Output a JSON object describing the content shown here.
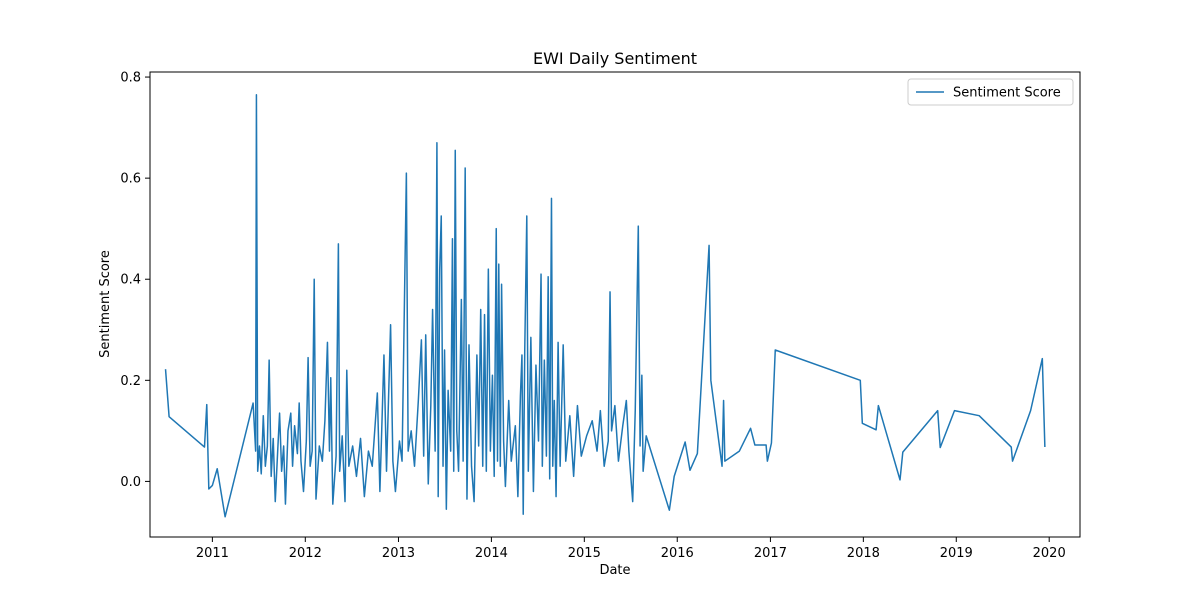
{
  "chart_data": {
    "type": "line",
    "title": "EWI Daily Sentiment",
    "xlabel": "Date",
    "ylabel": "Sentiment Score",
    "x_range": [
      "2010-05-01",
      "2020-05-01"
    ],
    "ylim": [
      -0.11,
      0.81
    ],
    "x_ticks": [
      {
        "date": "2011-01-01",
        "label": "2011"
      },
      {
        "date": "2012-01-01",
        "label": "2012"
      },
      {
        "date": "2013-01-01",
        "label": "2013"
      },
      {
        "date": "2014-01-01",
        "label": "2014"
      },
      {
        "date": "2015-01-01",
        "label": "2015"
      },
      {
        "date": "2016-01-01",
        "label": "2016"
      },
      {
        "date": "2017-01-01",
        "label": "2017"
      },
      {
        "date": "2018-01-01",
        "label": "2018"
      },
      {
        "date": "2019-01-01",
        "label": "2019"
      },
      {
        "date": "2020-01-01",
        "label": "2020"
      }
    ],
    "y_ticks": [
      {
        "value": 0.0,
        "label": "0.0"
      },
      {
        "value": 0.2,
        "label": "0.2"
      },
      {
        "value": 0.4,
        "label": "0.4"
      },
      {
        "value": 0.6,
        "label": "0.6"
      },
      {
        "value": 0.8,
        "label": "0.8"
      }
    ],
    "grid": false,
    "legend_position": "top-right",
    "colors": {
      "series": "#1f77b4",
      "axes": "#000000",
      "background": "#ffffff"
    },
    "series": [
      {
        "name": "Sentiment Score",
        "points": [
          [
            "2010-07-01",
            0.222
          ],
          [
            "2010-07-15",
            0.128
          ],
          [
            "2010-12-01",
            0.068
          ],
          [
            "2010-12-10",
            0.152
          ],
          [
            "2010-12-18",
            -0.015
          ],
          [
            "2011-01-01",
            -0.008
          ],
          [
            "2011-01-20",
            0.025
          ],
          [
            "2011-02-20",
            -0.07
          ],
          [
            "2011-06-10",
            0.155
          ],
          [
            "2011-06-20",
            0.06
          ],
          [
            "2011-06-23",
            0.765
          ],
          [
            "2011-06-28",
            0.02
          ],
          [
            "2011-07-05",
            0.07
          ],
          [
            "2011-07-12",
            0.015
          ],
          [
            "2011-07-20",
            0.13
          ],
          [
            "2011-07-28",
            0.03
          ],
          [
            "2011-08-05",
            0.07
          ],
          [
            "2011-08-12",
            0.24
          ],
          [
            "2011-08-20",
            0.01
          ],
          [
            "2011-08-28",
            0.085
          ],
          [
            "2011-09-05",
            -0.04
          ],
          [
            "2011-09-15",
            0.065
          ],
          [
            "2011-09-22",
            0.135
          ],
          [
            "2011-09-30",
            0.02
          ],
          [
            "2011-10-08",
            0.07
          ],
          [
            "2011-10-15",
            -0.045
          ],
          [
            "2011-10-25",
            0.1
          ],
          [
            "2011-11-05",
            0.135
          ],
          [
            "2011-11-12",
            0.03
          ],
          [
            "2011-11-20",
            0.11
          ],
          [
            "2011-12-01",
            0.055
          ],
          [
            "2011-12-08",
            0.155
          ],
          [
            "2011-12-15",
            0.04
          ],
          [
            "2011-12-25",
            -0.02
          ],
          [
            "2012-01-05",
            0.08
          ],
          [
            "2012-01-12",
            0.245
          ],
          [
            "2012-01-20",
            0.03
          ],
          [
            "2012-01-28",
            0.06
          ],
          [
            "2012-02-05",
            0.4
          ],
          [
            "2012-02-12",
            -0.035
          ],
          [
            "2012-02-25",
            0.07
          ],
          [
            "2012-03-08",
            0.04
          ],
          [
            "2012-03-18",
            0.12
          ],
          [
            "2012-03-28",
            0.275
          ],
          [
            "2012-04-05",
            0.06
          ],
          [
            "2012-04-10",
            0.205
          ],
          [
            "2012-04-18",
            -0.045
          ],
          [
            "2012-05-01",
            0.05
          ],
          [
            "2012-05-10",
            0.47
          ],
          [
            "2012-05-15",
            0.02
          ],
          [
            "2012-05-25",
            0.09
          ],
          [
            "2012-06-05",
            -0.04
          ],
          [
            "2012-06-12",
            0.22
          ],
          [
            "2012-06-20",
            0.03
          ],
          [
            "2012-07-05",
            0.07
          ],
          [
            "2012-07-20",
            0.01
          ],
          [
            "2012-08-05",
            0.085
          ],
          [
            "2012-08-20",
            -0.03
          ],
          [
            "2012-09-05",
            0.06
          ],
          [
            "2012-09-20",
            0.03
          ],
          [
            "2012-10-10",
            0.175
          ],
          [
            "2012-10-20",
            -0.02
          ],
          [
            "2012-11-05",
            0.25
          ],
          [
            "2012-11-15",
            0.02
          ],
          [
            "2012-12-01",
            0.31
          ],
          [
            "2012-12-10",
            0.04
          ],
          [
            "2012-12-20",
            -0.02
          ],
          [
            "2013-01-05",
            0.08
          ],
          [
            "2013-01-15",
            0.04
          ],
          [
            "2013-02-01",
            0.61
          ],
          [
            "2013-02-08",
            0.06
          ],
          [
            "2013-02-20",
            0.1
          ],
          [
            "2013-03-05",
            0.03
          ],
          [
            "2013-03-20",
            0.16
          ],
          [
            "2013-04-01",
            0.28
          ],
          [
            "2013-04-10",
            0.05
          ],
          [
            "2013-04-18",
            0.29
          ],
          [
            "2013-04-28",
            -0.005
          ],
          [
            "2013-05-08",
            0.15
          ],
          [
            "2013-05-15",
            0.34
          ],
          [
            "2013-05-25",
            0.06
          ],
          [
            "2013-06-01",
            0.67
          ],
          [
            "2013-06-06",
            -0.03
          ],
          [
            "2013-06-12",
            0.42
          ],
          [
            "2013-06-18",
            0.525
          ],
          [
            "2013-06-25",
            0.03
          ],
          [
            "2013-07-01",
            0.26
          ],
          [
            "2013-07-08",
            -0.055
          ],
          [
            "2013-07-15",
            0.18
          ],
          [
            "2013-07-25",
            0.06
          ],
          [
            "2013-08-01",
            0.48
          ],
          [
            "2013-08-06",
            0.02
          ],
          [
            "2013-08-12",
            0.655
          ],
          [
            "2013-08-18",
            0.1
          ],
          [
            "2013-08-25",
            0.02
          ],
          [
            "2013-09-05",
            0.36
          ],
          [
            "2013-09-12",
            0.04
          ],
          [
            "2013-09-20",
            0.62
          ],
          [
            "2013-09-27",
            -0.035
          ],
          [
            "2013-10-05",
            0.27
          ],
          [
            "2013-10-15",
            0.03
          ],
          [
            "2013-10-25",
            -0.04
          ],
          [
            "2013-11-05",
            0.25
          ],
          [
            "2013-11-12",
            0.07
          ],
          [
            "2013-11-20",
            0.34
          ],
          [
            "2013-11-28",
            0.03
          ],
          [
            "2013-12-05",
            0.33
          ],
          [
            "2013-12-12",
            0.02
          ],
          [
            "2013-12-20",
            0.42
          ],
          [
            "2013-12-28",
            0.06
          ],
          [
            "2014-01-05",
            0.21
          ],
          [
            "2014-01-12",
            0.01
          ],
          [
            "2014-01-20",
            0.5
          ],
          [
            "2014-01-25",
            0.04
          ],
          [
            "2014-01-30",
            0.43
          ],
          [
            "2014-02-05",
            0.03
          ],
          [
            "2014-02-10",
            0.39
          ],
          [
            "2014-02-18",
            0.08
          ],
          [
            "2014-02-25",
            -0.01
          ],
          [
            "2014-03-10",
            0.16
          ],
          [
            "2014-03-20",
            0.04
          ],
          [
            "2014-04-05",
            0.11
          ],
          [
            "2014-04-15",
            -0.03
          ],
          [
            "2014-04-25",
            0.17
          ],
          [
            "2014-05-01",
            0.25
          ],
          [
            "2014-05-06",
            -0.065
          ],
          [
            "2014-05-12",
            0.26
          ],
          [
            "2014-05-20",
            0.525
          ],
          [
            "2014-05-26",
            0.02
          ],
          [
            "2014-06-05",
            0.285
          ],
          [
            "2014-06-15",
            -0.02
          ],
          [
            "2014-06-25",
            0.23
          ],
          [
            "2014-07-05",
            0.08
          ],
          [
            "2014-07-15",
            0.41
          ],
          [
            "2014-07-20",
            0.03
          ],
          [
            "2014-07-28",
            0.24
          ],
          [
            "2014-08-05",
            0.05
          ],
          [
            "2014-08-12",
            0.405
          ],
          [
            "2014-08-18",
            0.005
          ],
          [
            "2014-08-25",
            0.56
          ],
          [
            "2014-08-30",
            0.03
          ],
          [
            "2014-09-05",
            0.16
          ],
          [
            "2014-09-12",
            -0.03
          ],
          [
            "2014-09-20",
            0.275
          ],
          [
            "2014-09-28",
            0.03
          ],
          [
            "2014-10-10",
            0.27
          ],
          [
            "2014-10-20",
            0.04
          ],
          [
            "2014-11-05",
            0.13
          ],
          [
            "2014-11-20",
            0.01
          ],
          [
            "2014-12-05",
            0.15
          ],
          [
            "2014-12-20",
            0.05
          ],
          [
            "2015-01-10",
            0.09
          ],
          [
            "2015-02-01",
            0.12
          ],
          [
            "2015-02-20",
            0.06
          ],
          [
            "2015-03-05",
            0.14
          ],
          [
            "2015-03-20",
            0.03
          ],
          [
            "2015-04-05",
            0.08
          ],
          [
            "2015-04-12",
            0.375
          ],
          [
            "2015-04-18",
            0.1
          ],
          [
            "2015-05-01",
            0.15
          ],
          [
            "2015-05-15",
            0.04
          ],
          [
            "2015-06-01",
            0.11
          ],
          [
            "2015-06-15",
            0.16
          ],
          [
            "2015-06-25",
            0.06
          ],
          [
            "2015-07-10",
            -0.04
          ],
          [
            "2015-07-20",
            0.14
          ],
          [
            "2015-08-01",
            0.505
          ],
          [
            "2015-08-08",
            0.07
          ],
          [
            "2015-08-15",
            0.21
          ],
          [
            "2015-08-20",
            0.02
          ],
          [
            "2015-09-01",
            0.09
          ],
          [
            "2015-12-01",
            -0.057
          ],
          [
            "2015-12-20",
            0.01
          ],
          [
            "2016-02-01",
            0.078
          ],
          [
            "2016-02-20",
            0.022
          ],
          [
            "2016-03-20",
            0.055
          ],
          [
            "2016-05-05",
            0.467
          ],
          [
            "2016-05-12",
            0.2
          ],
          [
            "2016-06-25",
            0.03
          ],
          [
            "2016-07-01",
            0.16
          ],
          [
            "2016-07-06",
            0.04
          ],
          [
            "2016-09-01",
            0.06
          ],
          [
            "2016-10-15",
            0.105
          ],
          [
            "2016-11-01",
            0.072
          ],
          [
            "2016-12-15",
            0.072
          ],
          [
            "2016-12-20",
            0.04
          ],
          [
            "2017-01-05",
            0.076
          ],
          [
            "2017-01-20",
            0.26
          ],
          [
            "2017-12-20",
            0.2
          ],
          [
            "2017-12-28",
            0.115
          ],
          [
            "2018-02-20",
            0.102
          ],
          [
            "2018-03-01",
            0.15
          ],
          [
            "2018-05-25",
            0.003
          ],
          [
            "2018-06-05",
            0.058
          ],
          [
            "2018-10-20",
            0.14
          ],
          [
            "2018-10-30",
            0.067
          ],
          [
            "2018-12-25",
            0.14
          ],
          [
            "2019-04-01",
            0.13
          ],
          [
            "2019-08-05",
            0.068
          ],
          [
            "2019-08-10",
            0.04
          ],
          [
            "2019-10-20",
            0.14
          ],
          [
            "2019-12-05",
            0.243
          ],
          [
            "2019-12-15",
            0.068
          ]
        ]
      }
    ]
  }
}
